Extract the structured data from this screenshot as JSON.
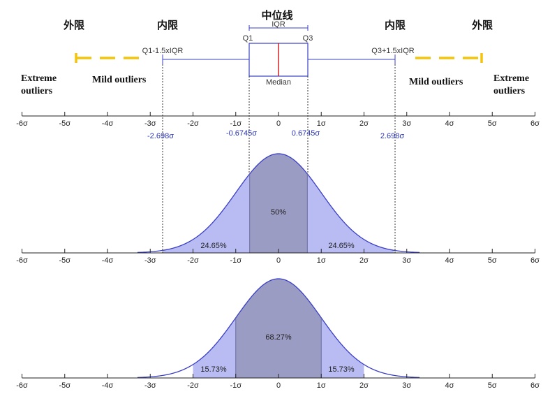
{
  "labels": {
    "median_zh": "中位线",
    "outer_fence_left": "外限",
    "inner_fence_left": "内限",
    "inner_fence_right": "内限",
    "outer_fence_right": "外限",
    "extreme_outliers_left_1": "Extreme",
    "extreme_outliers_left_2": "outliers",
    "mild_outliers_left": "Mild outliers",
    "mild_outliers_right": "Mild outliers",
    "extreme_outliers_right_1": "Extreme",
    "extreme_outliers_right_2": "outliers",
    "iqr": "IQR",
    "q1": "Q1",
    "q3": "Q3",
    "median": "Median",
    "lower_fence": "Q1-1.5xIQR",
    "upper_fence": "Q3+1.5xIQR",
    "val_neg_fence": "-2.698σ",
    "val_neg_q1": "-0.6745σ",
    "val_pos_q3": "0.6745σ",
    "val_pos_fence": "2.698σ"
  },
  "axis_ticks": [
    "-6σ",
    "-5σ",
    "-4σ",
    "-3σ",
    "-2σ",
    "-1σ",
    "0",
    "1σ",
    "2σ",
    "3σ",
    "4σ",
    "5σ",
    "6σ"
  ],
  "colors": {
    "fill": "#b9bcf3",
    "fill_dark": "#9b9cc4",
    "curve": "#3a3fc4",
    "median_line": "#cc0000",
    "fence_yellow": "#f2c40c",
    "box": "#3a3fc4"
  },
  "chart_data": [
    {
      "type": "area",
      "title": "",
      "distribution": "standard normal",
      "x_range": [
        -6,
        6
      ],
      "shaded_intervals": [
        {
          "from": -2.698,
          "to": -0.6745,
          "label": "24.65%",
          "value": 24.65
        },
        {
          "from": -0.6745,
          "to": 0.6745,
          "label": "50%",
          "value": 50
        },
        {
          "from": 0.6745,
          "to": 2.698,
          "label": "24.65%",
          "value": 24.65
        }
      ]
    },
    {
      "type": "area",
      "title": "",
      "distribution": "standard normal",
      "x_range": [
        -6,
        6
      ],
      "shaded_intervals": [
        {
          "from": -2,
          "to": -1,
          "label": "15.73%",
          "value": 15.73
        },
        {
          "from": -1,
          "to": 1,
          "label": "68.27%",
          "value": 68.27
        },
        {
          "from": 1,
          "to": 2,
          "label": "15.73%",
          "value": 15.73
        }
      ]
    }
  ]
}
